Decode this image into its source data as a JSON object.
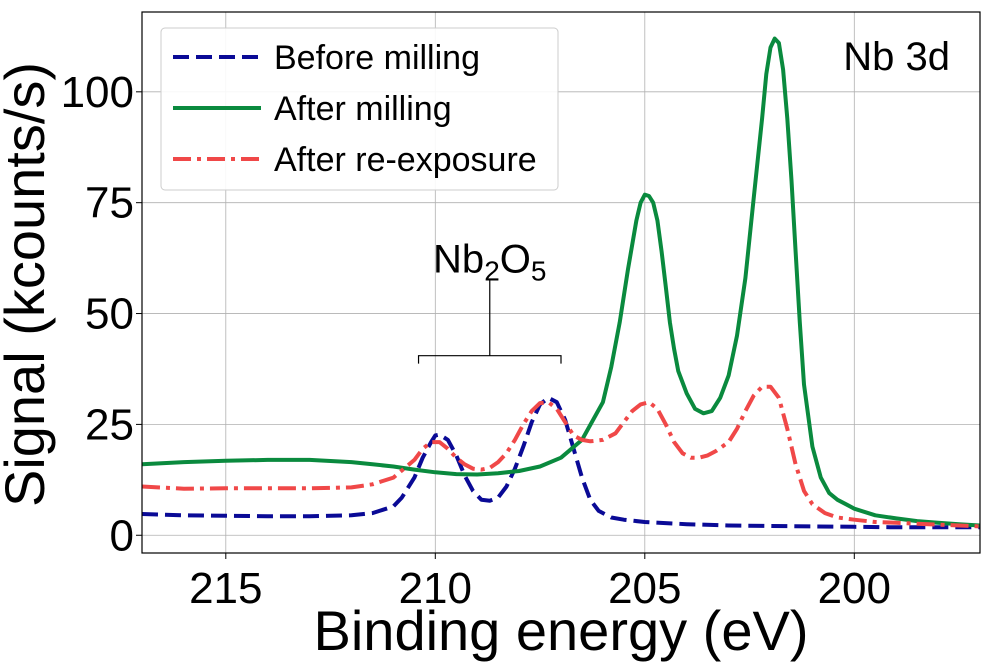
{
  "chart_data": {
    "type": "line",
    "xlabel": "Binding energy (eV)",
    "ylabel": "Signal (kcounts/s)",
    "xlim": [
      217,
      197
    ],
    "ylim": [
      -4,
      118
    ],
    "x_reversed": true,
    "grid": true,
    "legend_position": "top-left",
    "x_ticks": [
      215,
      210,
      205,
      200
    ],
    "y_ticks": [
      0,
      25,
      50,
      75,
      100
    ],
    "corner_label": "Nb 3d",
    "annotation": {
      "base": "Nb",
      "sub1": "2",
      "mid": "O",
      "sub2": "5",
      "bracket_x": [
        210.4,
        207.0
      ],
      "bracket_y": 40.5,
      "stem_top_y": 57.5
    },
    "series": [
      {
        "name": "Before milling",
        "color": "#0a0a96",
        "style": "dashed",
        "x": [
          217,
          216,
          215,
          214,
          213,
          212,
          211.5,
          211,
          210.8,
          210.5,
          210.3,
          210.1,
          210,
          209.9,
          209.7,
          209.5,
          209.3,
          209.1,
          208.9,
          208.7,
          208.5,
          208.3,
          208.1,
          207.9,
          207.7,
          207.5,
          207.3,
          207.1,
          206.9,
          206.7,
          206.5,
          206.3,
          206.1,
          205.8,
          205.5,
          205,
          204,
          203,
          202,
          201,
          200,
          199,
          198,
          197
        ],
        "y": [
          4.8,
          4.5,
          4.4,
          4.3,
          4.3,
          4.5,
          5.0,
          6.5,
          8.5,
          13.0,
          17.5,
          21.0,
          22.5,
          22.7,
          21.5,
          18.0,
          13.5,
          10.0,
          8.0,
          7.8,
          8.5,
          11.0,
          15.0,
          20.0,
          25.5,
          29.5,
          31.0,
          30.0,
          26.0,
          19.5,
          13.0,
          8.0,
          5.5,
          4.0,
          3.5,
          3.0,
          2.5,
          2.2,
          2.1,
          2.0,
          1.9,
          1.8,
          1.8,
          1.8
        ]
      },
      {
        "name": "After milling",
        "color": "#0a8a3e",
        "style": "solid",
        "x": [
          217,
          216,
          215,
          214,
          213,
          212,
          211.5,
          211,
          210.5,
          210,
          209.5,
          209,
          208.5,
          208,
          207.5,
          207,
          206.5,
          206,
          205.8,
          205.6,
          205.4,
          205.2,
          205.1,
          205.0,
          204.9,
          204.8,
          204.7,
          204.6,
          204.5,
          204.4,
          204.3,
          204.2,
          204.0,
          203.8,
          203.6,
          203.4,
          203.2,
          203.0,
          202.8,
          202.6,
          202.4,
          202.2,
          202.1,
          202.0,
          201.9,
          201.8,
          201.7,
          201.6,
          201.5,
          201.4,
          201.3,
          201.2,
          201.0,
          200.8,
          200.6,
          200.4,
          200.2,
          200.0,
          199.5,
          199,
          198.5,
          198,
          197.5,
          197
        ],
        "y": [
          16.0,
          16.5,
          16.8,
          17.0,
          17.0,
          16.5,
          16.0,
          15.5,
          14.8,
          14.2,
          13.8,
          13.7,
          14.0,
          14.5,
          15.5,
          17.5,
          21.5,
          30.0,
          38.0,
          48.0,
          60.0,
          71.0,
          75.0,
          76.8,
          76.5,
          75.0,
          71.0,
          64.0,
          56.0,
          48.0,
          42.0,
          37.0,
          32.0,
          28.5,
          27.5,
          28.0,
          31.0,
          36.0,
          45.0,
          58.0,
          76.0,
          94.0,
          104.0,
          110.0,
          112.0,
          111.0,
          105.0,
          94.0,
          80.0,
          64.0,
          48.0,
          34.0,
          20.0,
          13.0,
          9.5,
          8.0,
          7.0,
          6.0,
          4.5,
          3.8,
          3.2,
          2.8,
          2.5,
          2.2
        ]
      },
      {
        "name": "After re-exposure",
        "color": "#f04848",
        "style": "dashdot",
        "x": [
          217,
          216,
          215,
          214,
          213,
          212,
          211.5,
          211,
          210.5,
          210.3,
          210.1,
          209.9,
          209.7,
          209.5,
          209.3,
          209.1,
          208.9,
          208.7,
          208.5,
          208.3,
          208.1,
          207.9,
          207.7,
          207.5,
          207.3,
          207.1,
          206.9,
          206.7,
          206.5,
          206.3,
          206.0,
          205.7,
          205.5,
          205.3,
          205.1,
          204.9,
          204.7,
          204.5,
          204.3,
          204.1,
          203.9,
          203.7,
          203.5,
          203.3,
          203.0,
          202.8,
          202.6,
          202.4,
          202.2,
          202.0,
          201.8,
          201.6,
          201.4,
          201.2,
          201.0,
          200.7,
          200.4,
          200.0,
          199.5,
          199,
          198.5,
          198,
          197.5,
          197
        ],
        "y": [
          11.0,
          10.5,
          10.6,
          10.6,
          10.6,
          10.8,
          11.5,
          13.0,
          17.0,
          19.5,
          21.0,
          21.0,
          19.5,
          17.5,
          16.0,
          15.0,
          14.8,
          15.2,
          16.5,
          18.5,
          21.5,
          25.0,
          28.0,
          29.8,
          30.0,
          28.5,
          25.5,
          22.5,
          21.5,
          21.2,
          21.5,
          23.0,
          25.5,
          28.0,
          29.5,
          30.0,
          28.5,
          25.0,
          21.0,
          18.5,
          17.5,
          17.5,
          18.0,
          19.0,
          21.0,
          24.0,
          28.0,
          31.5,
          33.5,
          33.5,
          31.0,
          24.0,
          16.0,
          10.0,
          7.0,
          5.0,
          4.0,
          3.5,
          3.0,
          2.8,
          2.6,
          2.4,
          2.2,
          2.0
        ]
      }
    ]
  }
}
